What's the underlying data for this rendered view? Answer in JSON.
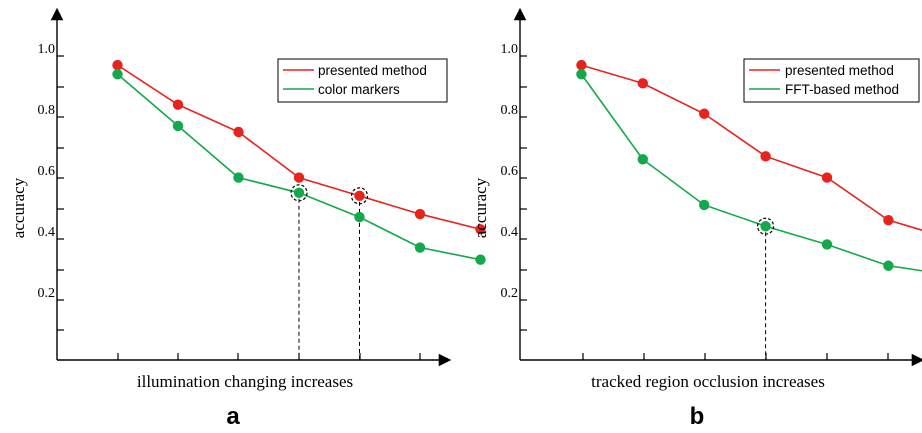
{
  "chart_data": [
    {
      "type": "line",
      "panel_label": "a",
      "xlabel": "illumination changing increases",
      "ylabel": "accuracy",
      "y_ticks": [
        "0.2",
        "0.4",
        "0.6",
        "0.8",
        "1.0"
      ],
      "ylim": [
        0,
        1.1
      ],
      "x": [
        1,
        2,
        3,
        4,
        5,
        6,
        7
      ],
      "series": [
        {
          "name": "presented method",
          "color": "#e8231e",
          "values": [
            0.97,
            0.84,
            0.75,
            0.6,
            0.54,
            0.48,
            0.43
          ]
        },
        {
          "name": "color markers",
          "color": "#12a84b",
          "values": [
            0.94,
            0.77,
            0.6,
            0.55,
            0.47,
            0.37,
            0.33
          ]
        }
      ],
      "highlighted_points": [
        {
          "series": 1,
          "x": 4
        },
        {
          "series": 0,
          "x": 5
        }
      ],
      "legend": "top-right",
      "grid": false
    },
    {
      "type": "line",
      "panel_label": "b",
      "xlabel": "tracked region occlusion increases",
      "ylabel": "accuracy",
      "y_ticks": [
        "0.2",
        "0.4",
        "0.6",
        "0.8",
        "1.0"
      ],
      "ylim": [
        0,
        1.1
      ],
      "x": [
        1,
        2,
        3,
        4,
        5,
        6,
        7
      ],
      "series": [
        {
          "name": "presented method",
          "color": "#e8231e",
          "values": [
            0.97,
            0.91,
            0.81,
            0.67,
            0.6,
            0.46,
            0.4
          ]
        },
        {
          "name": "FFT-based method",
          "color": "#12a84b",
          "values": [
            0.94,
            0.66,
            0.51,
            0.44,
            0.38,
            0.31,
            0.28
          ]
        }
      ],
      "highlighted_points": [
        {
          "series": 1,
          "x": 4
        },
        {
          "series": 0,
          "x": 7
        }
      ],
      "legend": "top-right",
      "grid": false
    }
  ]
}
